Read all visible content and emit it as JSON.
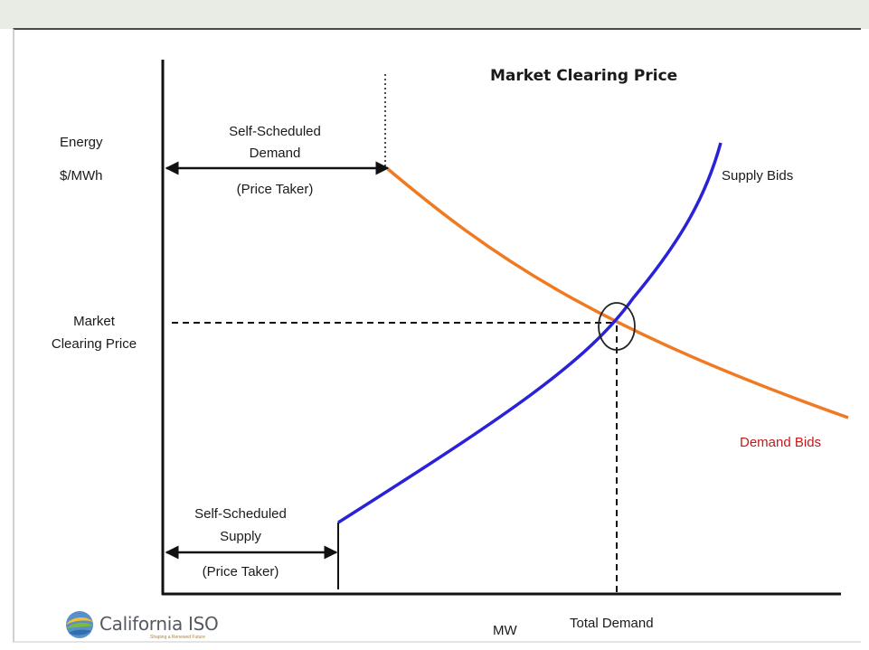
{
  "title": "Market Clearing Price",
  "y_axis_label_line1": "Energy",
  "y_axis_label_line2": "$/MWh",
  "x_axis_label": "MW",
  "price_label_line1": "Market",
  "price_label_line2": "Clearing Price",
  "total_demand_label": "Total Demand",
  "self_demand": {
    "line1": "Self-Scheduled",
    "line2": "Demand",
    "line3": "(Price Taker)"
  },
  "self_supply": {
    "line1": "Self-Scheduled",
    "line2": "Supply",
    "line3": "(Price Taker)"
  },
  "supply_label": "Supply Bids",
  "demand_label": "Demand Bids",
  "logo": {
    "name": "California ISO",
    "tagline": "Shaping a Renewed Future"
  },
  "colors": {
    "supply_curve": "#2a22d8",
    "demand_curve": "#f07a22",
    "demand_label": "#c41a1a",
    "axes": "#111111",
    "background_band": "#e9ece4"
  }
}
